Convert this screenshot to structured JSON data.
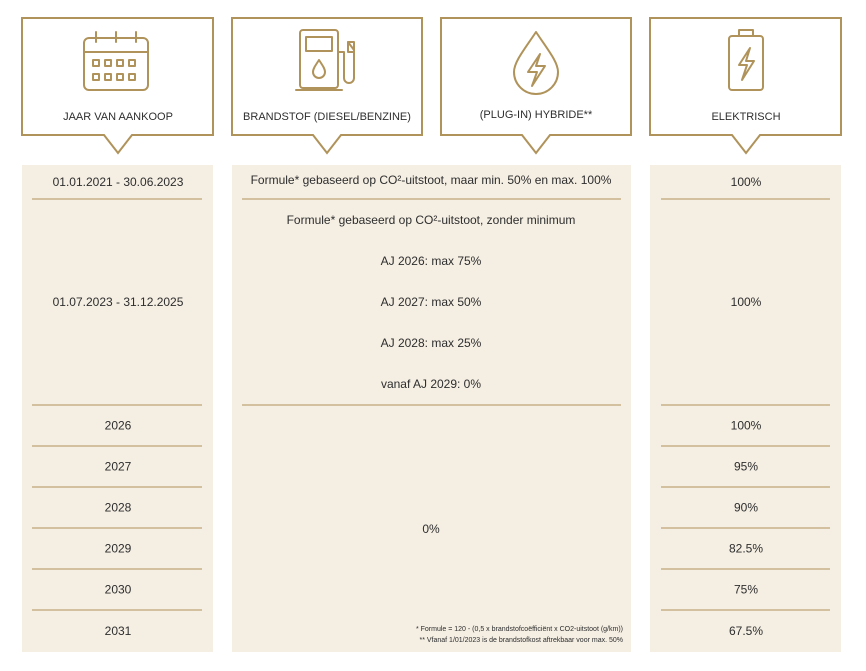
{
  "headers": [
    "JAAR VAN AANKOOP",
    "BRANDSTOF (DIESEL/BENZINE)",
    "(PLUG-IN) HYBRIDE**",
    "ELEKTRISCH"
  ],
  "table": {
    "years": [
      "01.01.2021 - 30.06.2023",
      "01.07.2023 - 31.12.2025",
      "2026",
      "2027",
      "2028",
      "2029",
      "2030",
      "2031"
    ],
    "fuel": {
      "first": "Formule* gebaseerd op CO²-uitstoot, maar min. 50% en max. 100%",
      "second": [
        "Formule* gebaseerd op CO²-uitstoot, zonder minimum",
        "AJ 2026: max 75%",
        "AJ 2027: max 50%",
        "AJ 2028: max 25%",
        "vanaf AJ 2029: 0%"
      ],
      "rest": "0%"
    },
    "electric": [
      "100%",
      "100%",
      "100%",
      "95%",
      "90%",
      "82.5%",
      "75%",
      "67.5%"
    ]
  },
  "footnotes": [
    "* Formule = 120 - (0,5 x brandstofcoëfficiënt x CO2-uitstoot (g/km))",
    "** Vfanaf 1/01/2023 is de brandstofkost aftrekbaar voor max. 50%"
  ]
}
